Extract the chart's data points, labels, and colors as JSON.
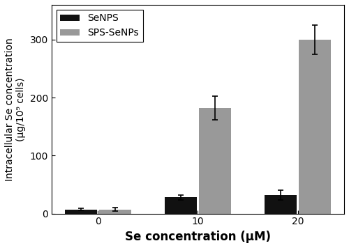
{
  "categories": [
    0,
    10,
    20
  ],
  "x_tick_labels": [
    "0",
    "10",
    "20"
  ],
  "senps_values": [
    7,
    28,
    32
  ],
  "senps_errors": [
    2,
    4,
    8
  ],
  "sps_senps_values": [
    7,
    182,
    300
  ],
  "sps_senps_errors": [
    3,
    20,
    25
  ],
  "senps_color": "#111111",
  "sps_senps_color": "#999999",
  "bar_width": 0.32,
  "xlabel": "Se concentration (μM)",
  "ylabel": "Intracellular Se concentration\n(μg/10⁹ cells)",
  "ylim": [
    0,
    360
  ],
  "yticks": [
    0,
    100,
    200,
    300
  ],
  "legend_labels": [
    "SeNPS",
    "SPS-SeNPs"
  ],
  "xlabel_fontsize": 12,
  "ylabel_fontsize": 10,
  "tick_fontsize": 10,
  "legend_fontsize": 10,
  "background_color": "#ffffff",
  "capsize": 3,
  "elinewidth": 1.2,
  "capthick": 1.2,
  "bar_gap": 0.02
}
